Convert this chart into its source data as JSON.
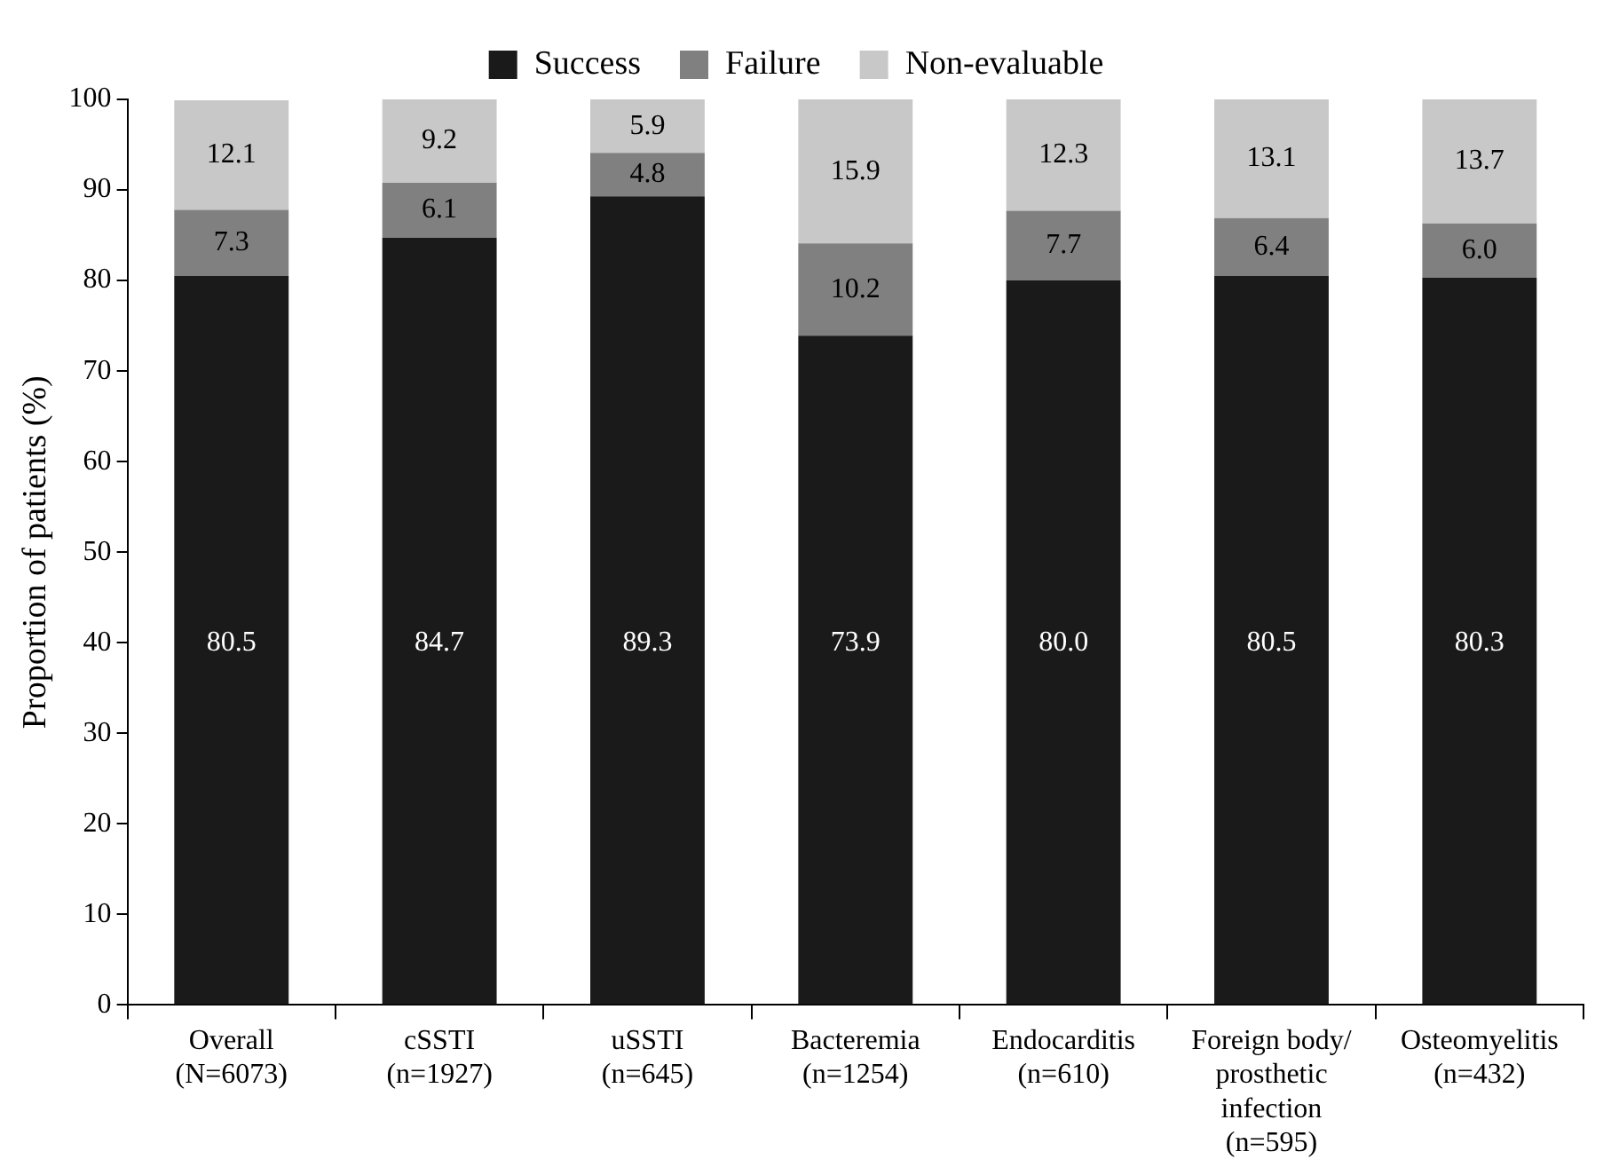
{
  "chart_data": {
    "type": "bar",
    "stacked": true,
    "ylabel": "Proportion of patients (%)",
    "categories": [
      "Overall\n(N=6073)",
      "cSSTI\n(n=1927)",
      "uSSTI\n(n=645)",
      "Bacteremia\n(n=1254)",
      "Endocarditis\n(n=610)",
      "Foreign body/\nprosthetic\ninfection\n(n=595)",
      "Osteomyelitis\n(n=432)"
    ],
    "series": [
      {
        "name": "Success",
        "color": "#1a1a1a",
        "values": [
          80.5,
          84.7,
          89.3,
          73.9,
          80.0,
          80.5,
          80.3
        ],
        "value_labels": [
          "80.5",
          "84.7",
          "89.3",
          "73.9",
          "80.0",
          "80.5",
          "80.3"
        ]
      },
      {
        "name": "Failure",
        "color": "#808080",
        "values": [
          7.3,
          6.1,
          4.8,
          10.2,
          7.7,
          6.4,
          6.0
        ],
        "value_labels": [
          "7.3",
          "6.1",
          "4.8",
          "10.2",
          "7.7",
          "6.4",
          "6.0"
        ]
      },
      {
        "name": "Non-evaluable",
        "color": "#c8c8c8",
        "values": [
          12.1,
          9.2,
          5.9,
          15.9,
          12.3,
          13.1,
          13.7
        ],
        "value_labels": [
          "12.1",
          "9.2",
          "5.9",
          "15.9",
          "12.3",
          "13.1",
          "13.7"
        ]
      }
    ],
    "ylim": [
      0,
      100
    ],
    "yticks": [
      0,
      10,
      20,
      30,
      40,
      50,
      60,
      70,
      80,
      90,
      100
    ],
    "grid": false,
    "legend": "top"
  }
}
